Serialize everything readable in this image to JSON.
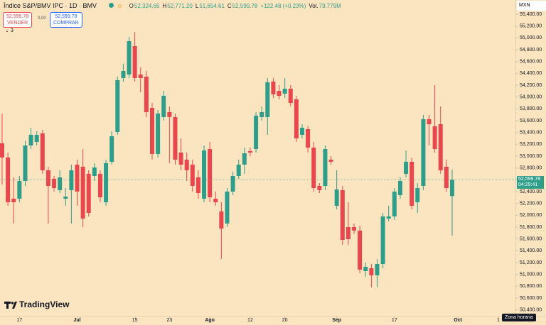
{
  "chart_data": {
    "type": "candlestick",
    "header": {
      "symbol": "Índice S&P/BMV IPC · 1D · BMV",
      "badge": "D",
      "legend": [
        {
          "label": "O",
          "value": "52,324.65"
        },
        {
          "label": "H",
          "value": "52,771.20"
        },
        {
          "label": "L",
          "value": "51,654.61"
        },
        {
          "label": "C",
          "value": "52,599.78"
        }
      ],
      "change": "+122.48 (+0.23%)",
      "volume_label": "Vol.",
      "volume": "79.779M",
      "sell_price": "52,599.78",
      "sell_label": "VENDER",
      "spread": "0,00",
      "buy_price": "52,599.78",
      "buy_label": "COMPRAR",
      "indicators": "3"
    },
    "currency": "MXN",
    "price_tag": "52,599.78",
    "countdown": "04:29:41",
    "timezone": "Zona horaria",
    "brand": "TradingView",
    "up_color": "#2e9e8a",
    "down_color": "#e8474d",
    "x": [
      0,
      1,
      2,
      3,
      4,
      5,
      6,
      7,
      8,
      9,
      10,
      11,
      12,
      13,
      14,
      15,
      16,
      17,
      18,
      19,
      20,
      21,
      22,
      23,
      24,
      25,
      26,
      27,
      28,
      29,
      30,
      31,
      32,
      33,
      34,
      35,
      36,
      37,
      38,
      39,
      40,
      41,
      42,
      43,
      44,
      45,
      46,
      47,
      48,
      49,
      50,
      51,
      52,
      53,
      54,
      55,
      56,
      57,
      58,
      59,
      60,
      61,
      62,
      63,
      64,
      65,
      66,
      67,
      68,
      69,
      70,
      71,
      72,
      73,
      74,
      75,
      76,
      77,
      78
    ],
    "open": [
      53216,
      52976,
      52280,
      52280,
      52580,
      53180,
      53240,
      53384,
      52760,
      52616,
      52424,
      52280,
      52424,
      52856,
      52820,
      52700,
      52664,
      52700,
      52220,
      52904,
      53408,
      54320,
      54380,
      54860,
      54380,
      54344,
      53816,
      53036,
      53660,
      53744,
      53660,
      53060,
      52940,
      52856,
      52640,
      52280,
      53120,
      52280,
      52064,
      51860,
      52400,
      52664,
      52856,
      53084,
      53120,
      53660,
      53660,
      54260,
      54104,
      54056,
      54140,
      53960,
      53360,
      53456,
      53144,
      52496,
      52496,
      52940,
      52160,
      52424,
      51800,
      51800,
      51740,
      51056,
      51104,
      50984,
      51176,
      51944,
      51980,
      52340,
      52700,
      52904,
      52220,
      52496,
      53624,
      53504,
      53540,
      52820,
      52324.65
    ],
    "high": [
      53720,
      53060,
      52640,
      52664,
      53264,
      53480,
      53420,
      53444,
      52820,
      52664,
      52760,
      52460,
      52856,
      52940,
      53120,
      52760,
      52880,
      52760,
      52940,
      53420,
      54344,
      54560,
      55016,
      55100,
      54500,
      54440,
      53900,
      53780,
      54104,
      53840,
      53720,
      53300,
      53060,
      52940,
      52760,
      53180,
      53240,
      52400,
      52220,
      52460,
      52736,
      52940,
      53144,
      53144,
      53744,
      53840,
      54320,
      54320,
      54200,
      54320,
      54200,
      54020,
      53540,
      53504,
      53240,
      52544,
      53180,
      53000,
      52760,
      52496,
      52220,
      51860,
      51824,
      51200,
      51176,
      51260,
      52040,
      52160,
      52460,
      52640,
      53096,
      52976,
      52544,
      53696,
      53696,
      54200,
      53840,
      52940,
      52771.2
    ],
    "low": [
      52520,
      52160,
      51860,
      52220,
      52496,
      53120,
      53180,
      52700,
      51860,
      52400,
      52376,
      52160,
      51860,
      52160,
      51800,
      51980,
      52580,
      52220,
      52160,
      52856,
      53360,
      54260,
      54320,
      54260,
      54080,
      53660,
      52940,
      52976,
      53600,
      52880,
      52856,
      52760,
      52580,
      52400,
      52280,
      52220,
      52220,
      52160,
      51260,
      51800,
      52340,
      52616,
      52700,
      53000,
      53060,
      53600,
      53360,
      53984,
      53960,
      53984,
      53840,
      53240,
      53300,
      53060,
      52400,
      52376,
      52424,
      52856,
      52100,
      51500,
      51500,
      51680,
      51020,
      50960,
      50780,
      50780,
      51104,
      51896,
      51920,
      52280,
      52640,
      52100,
      52040,
      52424,
      53180,
      53060,
      52700,
      52400,
      51654.61
    ],
    "close": [
      52976,
      52220,
      52220,
      52580,
      53180,
      53360,
      53360,
      52760,
      52496,
      52460,
      52640,
      52316,
      52760,
      52400,
      51944,
      52040,
      52808,
      52304,
      52880,
      53336,
      54284,
      54440,
      54944,
      54320,
      54320,
      53744,
      53036,
      53720,
      54020,
      53660,
      52940,
      52856,
      52760,
      52496,
      52376,
      53096,
      52304,
      52220,
      51776,
      52400,
      52664,
      52856,
      53048,
      53060,
      53684,
      53744,
      54248,
      54044,
      54020,
      54140,
      53900,
      53300,
      53480,
      53144,
      52460,
      52424,
      53120,
      52904,
      52436,
      51584,
      51596,
      51740,
      51080,
      51128,
      50984,
      51176,
      51980,
      51980,
      52400,
      52580,
      52904,
      52160,
      52460,
      53624,
      53540,
      53120,
      52760,
      52460,
      52599.78
    ],
    "last_price": 52599.78,
    "xlim": [
      -0.37,
      88.97
    ],
    "xticks": [
      {
        "value": 3,
        "label": "17"
      },
      {
        "value": 13,
        "label": "Jul"
      },
      {
        "value": 23,
        "label": "15"
      },
      {
        "value": 29,
        "label": "23"
      },
      {
        "value": 36,
        "label": "Ago"
      },
      {
        "value": 43,
        "label": "12"
      },
      {
        "value": 49,
        "label": "20"
      },
      {
        "value": 58,
        "label": "Sep"
      },
      {
        "value": 68,
        "label": "17"
      },
      {
        "value": 79,
        "label": "Oct"
      },
      {
        "value": 86,
        "label": "1"
      }
    ],
    "ylim": [
      50300,
      55640
    ],
    "yticks": [
      {
        "value": 50400,
        "label": "50,400.00"
      },
      {
        "value": 50600,
        "label": "50,600.00"
      },
      {
        "value": 50800,
        "label": "50,800.00"
      },
      {
        "value": 51000,
        "label": "51,000.00"
      },
      {
        "value": 51200,
        "label": "51,200.00"
      },
      {
        "value": 51400,
        "label": "51,400.00"
      },
      {
        "value": 51600,
        "label": "51,600.00"
      },
      {
        "value": 51800,
        "label": "51,800.00"
      },
      {
        "value": 52000,
        "label": "52,000.00"
      },
      {
        "value": 52200,
        "label": "52,200.00"
      },
      {
        "value": 52400,
        "label": "52,400.00"
      },
      {
        "value": 52600,
        "label": "52,600.00"
      },
      {
        "value": 52800,
        "label": "52,800.00"
      },
      {
        "value": 53000,
        "label": "53,000.00"
      },
      {
        "value": 53200,
        "label": "53,200.00"
      },
      {
        "value": 53400,
        "label": "53,400.00"
      },
      {
        "value": 53600,
        "label": "53,600.00"
      },
      {
        "value": 53800,
        "label": "53,800.00"
      },
      {
        "value": 54000,
        "label": "54,000.00"
      },
      {
        "value": 54200,
        "label": "54,200.00"
      },
      {
        "value": 54400,
        "label": "54,400.00"
      },
      {
        "value": 54600,
        "label": "54,600.00"
      },
      {
        "value": 54800,
        "label": "54,800.00"
      },
      {
        "value": 55000,
        "label": "55,000.00"
      },
      {
        "value": 55200,
        "label": "55,200.00"
      },
      {
        "value": 55400,
        "label": "55,400.00"
      }
    ]
  }
}
